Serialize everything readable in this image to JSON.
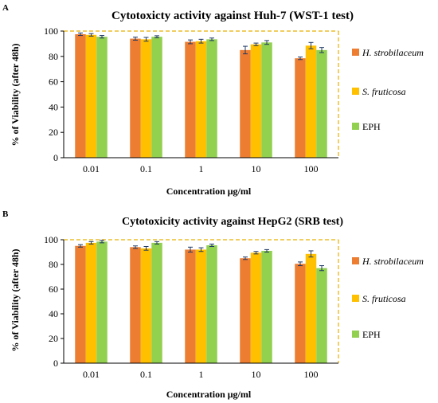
{
  "colors": {
    "series": [
      "#ED7D31",
      "#FFC000",
      "#92D050"
    ],
    "frame": "#E8B100",
    "errorbar": "#1F3864"
  },
  "chart_data": [
    {
      "type": "bar",
      "panel": "A",
      "title": "Cytotoxicty activity against Huh-7 (WST-1 test)",
      "xlabel": "Concentration μg/ml",
      "ylabel": "% of Viability (after 48h)",
      "ylim": [
        0,
        100
      ],
      "yticks": [
        "0",
        "20",
        "40",
        "60",
        "80",
        "100"
      ],
      "categories": [
        "0.01",
        "0.1",
        "1",
        "10",
        "100"
      ],
      "legend_position": "right",
      "grid": false,
      "series": [
        {
          "name": "H. strobilaceum",
          "values": [
            97.5,
            94,
            91.5,
            85,
            78.5
          ],
          "errors": [
            1,
            1.2,
            1.5,
            3,
            1
          ]
        },
        {
          "name": "S. fruticosa",
          "values": [
            97,
            93.5,
            92,
            89.5,
            88.5
          ],
          "errors": [
            1,
            1.5,
            1.5,
            1,
            2.5
          ]
        },
        {
          "name": "EPH",
          "values": [
            95.5,
            95.5,
            93.5,
            91,
            85
          ],
          "errors": [
            1,
            0.8,
            1,
            1.5,
            2
          ]
        }
      ]
    },
    {
      "type": "bar",
      "panel": "B",
      "title": "Cytotoxicity activity against HepG2 (SRB test)",
      "xlabel": "Concentration μg/ml",
      "ylabel": "% of Viability (after 48h)",
      "ylim": [
        0,
        100
      ],
      "yticks": [
        "0",
        "20",
        "40",
        "60",
        "80",
        "100"
      ],
      "categories": [
        "0.01",
        "0.1",
        "1",
        "10",
        "100"
      ],
      "legend_position": "right",
      "grid": false,
      "series": [
        {
          "name": "H. strobilaceum",
          "values": [
            95,
            94,
            92,
            85,
            80.5
          ],
          "errors": [
            1,
            1,
            2,
            1,
            1.5
          ]
        },
        {
          "name": "S. fruticosa",
          "values": [
            97.5,
            93,
            92,
            89.5,
            88.5
          ],
          "errors": [
            1,
            1.5,
            1.5,
            1,
            2.5
          ]
        },
        {
          "name": "EPH",
          "values": [
            98.5,
            97.5,
            95.5,
            91,
            77
          ],
          "errors": [
            1,
            1,
            1,
            1,
            2
          ]
        }
      ]
    }
  ]
}
